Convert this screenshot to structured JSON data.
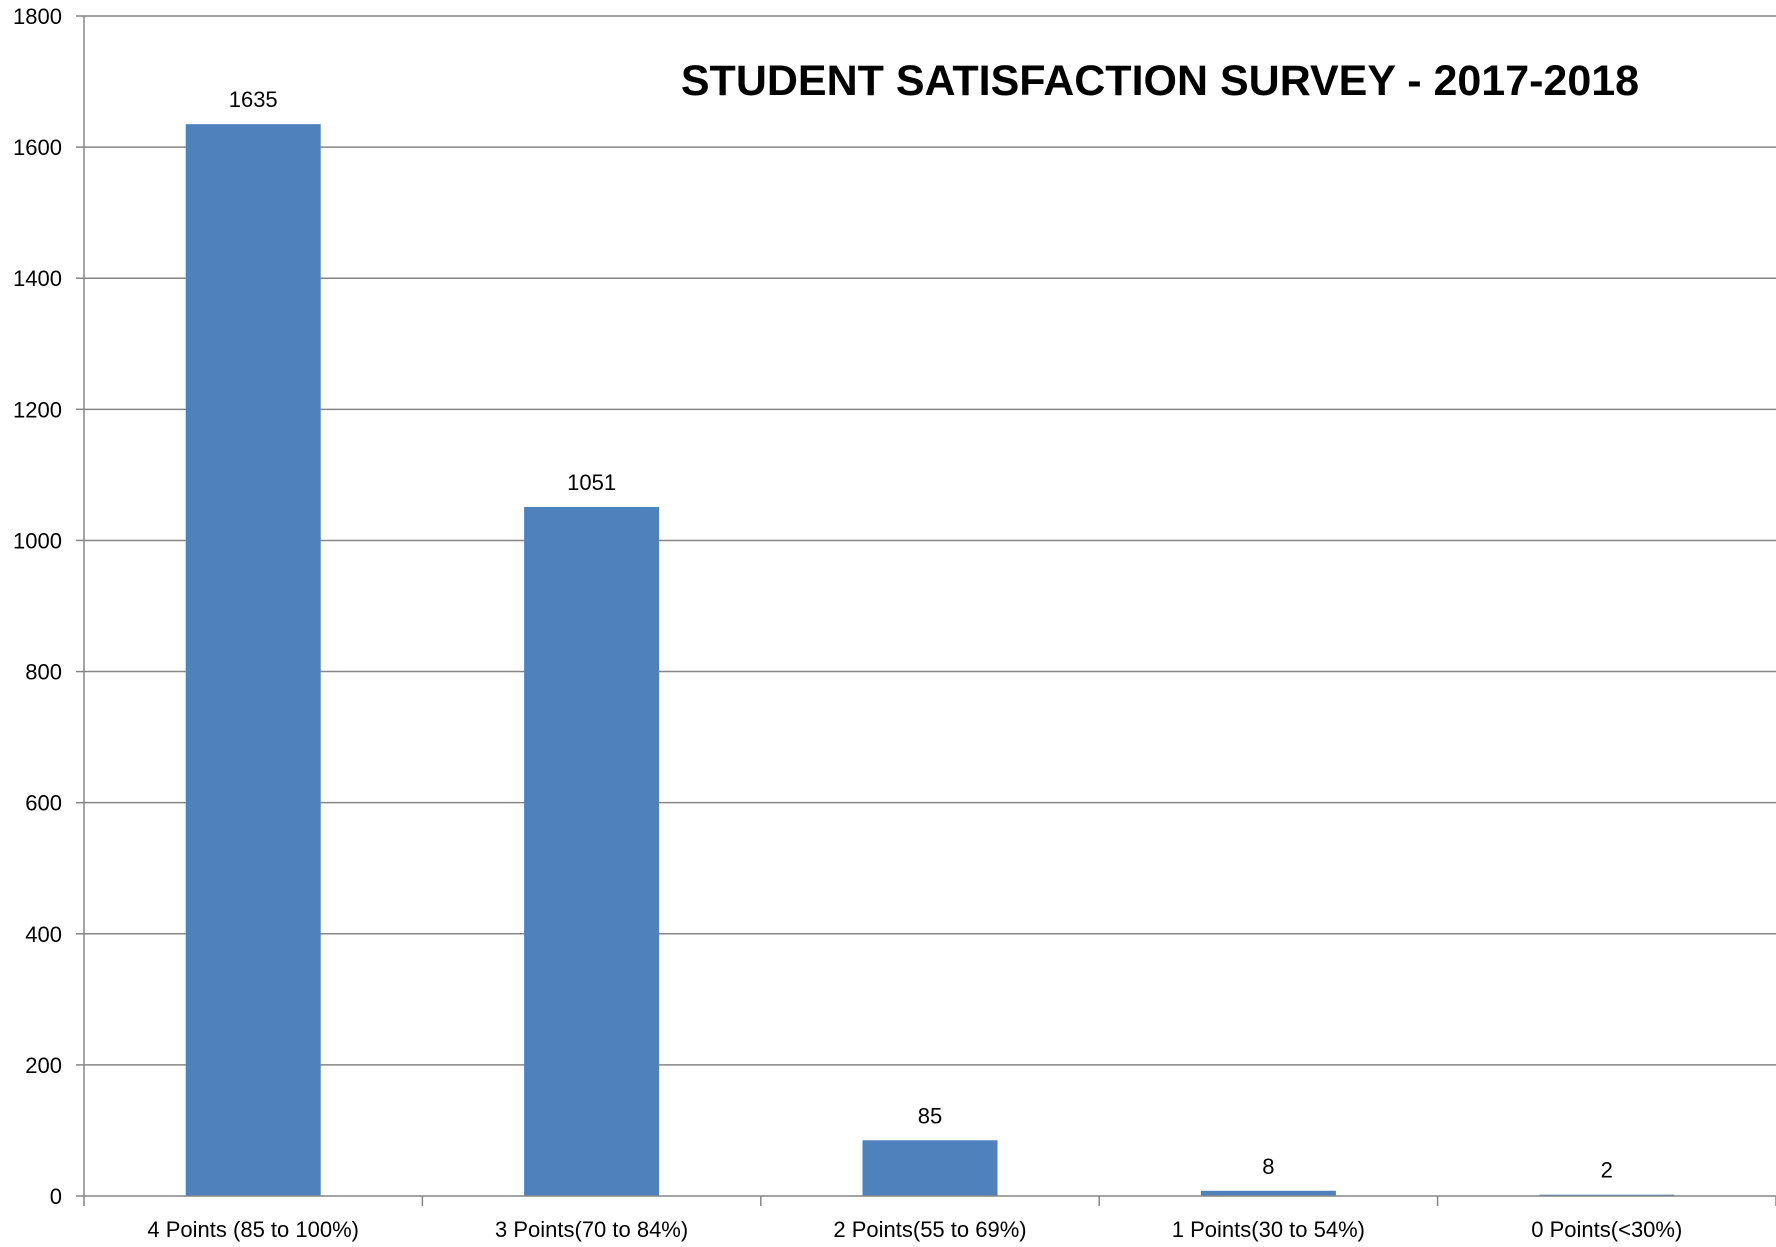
{
  "chart_data": {
    "type": "bar",
    "title": "STUDENT SATISFACTION SURVEY - 2017-2018",
    "xlabel": "",
    "ylabel": "",
    "categories": [
      "4 Points (85 to 100%)",
      "3 Points(70 to 84%)",
      "2 Points(55 to 69%)",
      "1 Points(30 to 54%)",
      "0 Points(<30%)"
    ],
    "values": [
      1635,
      1051,
      85,
      8,
      2
    ],
    "data_labels": [
      "1635",
      "1051",
      "85",
      "8",
      "2"
    ],
    "ylim": [
      0,
      1800
    ],
    "yticks": [
      0,
      200,
      400,
      600,
      800,
      1000,
      1200,
      1400,
      1600,
      1800
    ],
    "ytick_labels": [
      "0",
      "200",
      "400",
      "600",
      "800",
      "1000",
      "1200",
      "1400",
      "1600",
      "1800"
    ],
    "grid": true,
    "legend": "none",
    "colors": {
      "bar": "#4F81BD",
      "grid": "#868686",
      "axis": "#868686"
    }
  }
}
